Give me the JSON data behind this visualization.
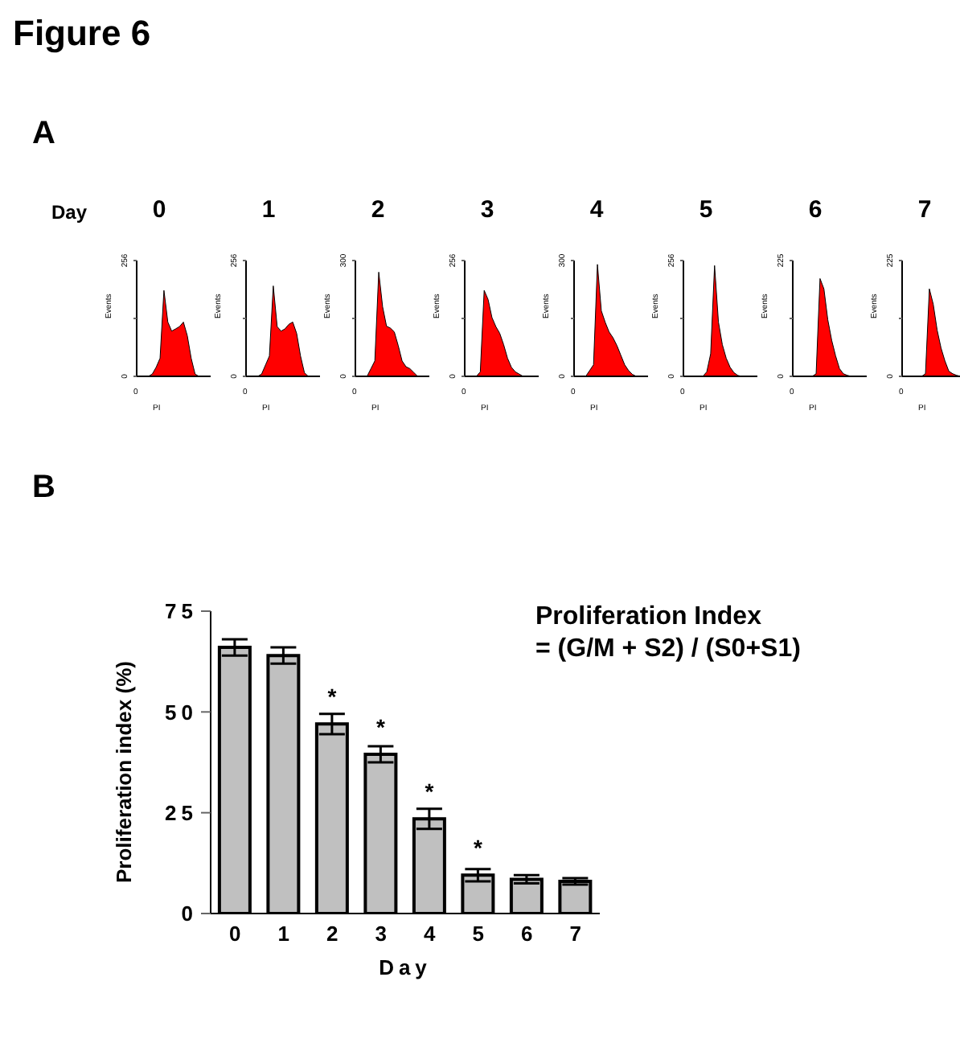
{
  "chart_data": [
    {
      "type": "area",
      "title": "0",
      "xlabel": "PI",
      "ylabel": "Events",
      "annotations": [
        "0",
        "Figure 6",
        "A",
        "Day"
      ],
      "categories": [
        null,
        null,
        null,
        null,
        null,
        null,
        null,
        null,
        null,
        null,
        null,
        null,
        null,
        null,
        null,
        null,
        null,
        null,
        null,
        null
      ],
      "values": [
        0,
        0,
        0,
        0,
        5,
        20,
        40,
        190,
        120,
        100,
        105,
        110,
        120,
        90,
        40,
        5,
        0,
        0,
        0,
        0
      ],
      "color": "#ff0000",
      "ylim": [
        0,
        256
      ],
      "yticks": [
        0,
        {
          "value": 128,
          "label": null
        },
        256
      ],
      "grid": false
    },
    {
      "type": "area",
      "title": "1",
      "xlabel": "PI",
      "ylabel": "Events",
      "annotations": [
        "0"
      ],
      "categories": [
        null,
        null,
        null,
        null,
        null,
        null,
        null,
        null,
        null,
        null,
        null,
        null,
        null,
        null,
        null,
        null,
        null,
        null,
        null,
        null
      ],
      "values": [
        0,
        0,
        0,
        0,
        5,
        25,
        45,
        200,
        110,
        100,
        105,
        115,
        120,
        95,
        45,
        8,
        0,
        0,
        0,
        0
      ],
      "color": "#ff0000",
      "ylim": [
        0,
        256
      ],
      "yticks": [
        0,
        {
          "value": 128,
          "label": null
        },
        256
      ],
      "grid": false
    },
    {
      "type": "area",
      "title": "2",
      "xlabel": "PI",
      "ylabel": "Events",
      "annotations": [
        "0"
      ],
      "categories": [
        null,
        null,
        null,
        null,
        null,
        null,
        null,
        null,
        null,
        null,
        null,
        null,
        null,
        null,
        null,
        null,
        null,
        null,
        null,
        null
      ],
      "values": [
        0,
        0,
        0,
        0,
        20,
        40,
        270,
        180,
        130,
        125,
        115,
        80,
        40,
        25,
        20,
        10,
        0,
        0,
        0,
        0
      ],
      "color": "#ff0000",
      "ylim": [
        0,
        300
      ],
      "yticks": [
        0,
        {
          "value": 150,
          "label": null
        },
        300
      ],
      "grid": false
    },
    {
      "type": "area",
      "title": "3",
      "xlabel": "PI",
      "ylabel": "Events",
      "annotations": [
        "0"
      ],
      "categories": [
        null,
        null,
        null,
        null,
        null,
        null,
        null,
        null,
        null,
        null,
        null,
        null,
        null,
        null,
        null,
        null,
        null,
        null,
        null,
        null
      ],
      "values": [
        0,
        0,
        0,
        0,
        10,
        190,
        170,
        130,
        110,
        95,
        70,
        40,
        20,
        10,
        5,
        0,
        0,
        0,
        0,
        0
      ],
      "color": "#ff0000",
      "ylim": [
        0,
        256
      ],
      "yticks": [
        0,
        {
          "value": 128,
          "label": null
        },
        256
      ],
      "grid": false
    },
    {
      "type": "area",
      "title": "4",
      "xlabel": "PI",
      "ylabel": "Events",
      "annotations": [
        "0"
      ],
      "categories": [
        null,
        null,
        null,
        null,
        null,
        null,
        null,
        null,
        null,
        null,
        null,
        null,
        null,
        null,
        null,
        null,
        null,
        null,
        null,
        null
      ],
      "values": [
        0,
        0,
        0,
        0,
        15,
        30,
        290,
        170,
        140,
        115,
        100,
        80,
        55,
        30,
        15,
        5,
        0,
        0,
        0,
        0
      ],
      "color": "#ff0000",
      "ylim": [
        0,
        300
      ],
      "yticks": [
        0,
        {
          "value": 150,
          "label": null
        },
        300
      ],
      "grid": false
    },
    {
      "type": "area",
      "title": "5",
      "xlabel": "PI",
      "ylabel": "Events",
      "annotations": [
        "0"
      ],
      "categories": [
        null,
        null,
        null,
        null,
        null,
        null,
        null,
        null,
        null,
        null,
        null,
        null,
        null,
        null,
        null,
        null,
        null,
        null,
        null,
        null
      ],
      "values": [
        0,
        0,
        0,
        0,
        0,
        0,
        10,
        50,
        245,
        120,
        70,
        40,
        20,
        8,
        2,
        0,
        0,
        0,
        0,
        0
      ],
      "color": "#ff0000",
      "ylim": [
        0,
        256
      ],
      "yticks": [
        0,
        {
          "value": 128,
          "label": null
        },
        256
      ],
      "grid": false
    },
    {
      "type": "area",
      "title": "6",
      "xlabel": "PI",
      "ylabel": "Events",
      "annotations": [
        "0"
      ],
      "categories": [
        null,
        null,
        null,
        null,
        null,
        null,
        null,
        null,
        null,
        null,
        null,
        null,
        null,
        null,
        null,
        null,
        null,
        null,
        null,
        null
      ],
      "values": [
        0,
        0,
        0,
        0,
        0,
        0,
        5,
        190,
        170,
        110,
        70,
        40,
        15,
        5,
        2,
        0,
        0,
        0,
        0,
        0
      ],
      "color": "#ff0000",
      "ylim": [
        0,
        225
      ],
      "yticks": [
        0,
        {
          "value": 112.5,
          "label": null
        },
        225
      ],
      "grid": false
    },
    {
      "type": "area",
      "title": "7",
      "xlabel": "PI",
      "ylabel": "Events",
      "annotations": [
        "0"
      ],
      "categories": [
        null,
        null,
        null,
        null,
        null,
        null,
        null,
        null,
        null,
        null,
        null,
        null,
        null,
        null,
        null,
        null,
        null,
        null,
        null,
        null
      ],
      "values": [
        0,
        0,
        0,
        0,
        0,
        0,
        5,
        170,
        140,
        90,
        55,
        30,
        10,
        5,
        2,
        0,
        0,
        0,
        0,
        0
      ],
      "color": "#ff0000",
      "ylim": [
        0,
        225
      ],
      "yticks": [
        0,
        {
          "value": 112.5,
          "label": null
        },
        225
      ],
      "grid": false
    },
    {
      "type": "bar",
      "title": "B",
      "xlabel": "Day",
      "ylabel": "Proliferation index (%)",
      "annotations": [
        "Proliferation Index",
        "= (G/M + S2) / (S0+S1)"
      ],
      "value_labels": [
        null,
        null,
        "*",
        "*",
        "*",
        "*",
        null,
        null
      ],
      "categories": [
        "0",
        "1",
        "2",
        "3",
        "4",
        "5",
        "6",
        "7"
      ],
      "values": [
        66,
        64,
        47,
        39.5,
        23.5,
        9.5,
        8.5,
        8
      ],
      "errors": [
        2,
        2,
        2.5,
        2,
        2.5,
        1.5,
        1,
        0.8
      ],
      "color": "#c0c0c0",
      "ylim": [
        0,
        75
      ],
      "yticks": [
        0,
        25,
        50,
        75
      ],
      "grid": false
    }
  ]
}
